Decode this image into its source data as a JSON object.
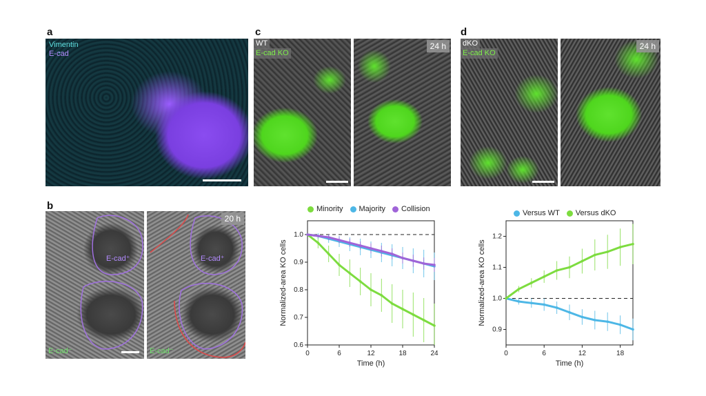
{
  "panels": {
    "a": {
      "letter": "a",
      "label1": "Vimentin",
      "label2": "E-cad"
    },
    "b": {
      "letter": "b",
      "time": "20 h",
      "ecad_plus_1": "E-cad⁺",
      "ecad_plus_2": "E-cad⁺",
      "ecad_minus_1": "E-cad⁻",
      "ecad_minus_2": "E-cad⁻"
    },
    "c": {
      "letter": "c",
      "label1": "WT",
      "label2": "E-cad KO",
      "time": "24 h"
    },
    "d": {
      "letter": "d",
      "label1": "dKO",
      "label2": "E-cad KO",
      "time": "24 h"
    }
  },
  "colors": {
    "minority": "#7ddc3f",
    "majority": "#4db7e6",
    "collision": "#a064d8",
    "vimentin": "#4fd6d6",
    "ecad": "#9b4dff",
    "gfp": "#55e82a"
  },
  "chart_data": [
    {
      "type": "line",
      "xlabel": "Time (h)",
      "ylabel": "Normalized-area KO cells",
      "xlim": [
        0,
        24
      ],
      "ylim": [
        0.6,
        1.05
      ],
      "xticks": [
        "0",
        "6",
        "12",
        "18",
        "24"
      ],
      "yticks": [
        "0.6",
        "0.7",
        "0.8",
        "0.9",
        "1.0"
      ],
      "reference_line": 1.0,
      "legend": "top",
      "series": [
        {
          "name": "Minority",
          "color": "#7ddc3f",
          "x": [
            0,
            2,
            4,
            6,
            8,
            10,
            12,
            14,
            16,
            18,
            20,
            22,
            24
          ],
          "y": [
            1.0,
            0.97,
            0.93,
            0.89,
            0.86,
            0.83,
            0.8,
            0.78,
            0.75,
            0.73,
            0.71,
            0.69,
            0.67
          ],
          "err": [
            0.0,
            0.02,
            0.03,
            0.04,
            0.05,
            0.05,
            0.06,
            0.06,
            0.07,
            0.07,
            0.08,
            0.08,
            0.08
          ]
        },
        {
          "name": "Majority",
          "color": "#4db7e6",
          "x": [
            0,
            2,
            4,
            6,
            8,
            10,
            12,
            14,
            16,
            18,
            20,
            22,
            24
          ],
          "y": [
            1.0,
            0.995,
            0.985,
            0.975,
            0.965,
            0.955,
            0.945,
            0.935,
            0.925,
            0.915,
            0.905,
            0.895,
            0.885
          ],
          "err": [
            0.0,
            0.01,
            0.015,
            0.02,
            0.025,
            0.03,
            0.03,
            0.035,
            0.04,
            0.04,
            0.045,
            0.05,
            0.05
          ]
        },
        {
          "name": "Collision",
          "color": "#a064d8",
          "x": [
            0,
            2,
            4,
            6,
            8,
            10,
            12,
            14,
            16,
            18,
            20,
            22,
            24
          ],
          "y": [
            1.0,
            0.995,
            0.99,
            0.98,
            0.97,
            0.96,
            0.95,
            0.94,
            0.93,
            0.915,
            0.905,
            0.895,
            0.89
          ],
          "err": [
            0.0,
            0.005,
            0.01,
            0.012,
            0.015,
            0.015,
            0.018,
            0.02,
            0.02,
            0.02,
            0.022,
            0.022,
            0.025
          ]
        }
      ]
    },
    {
      "type": "line",
      "xlabel": "Time (h)",
      "ylabel": "Normalized-area KO cells",
      "xlim": [
        0,
        20
      ],
      "ylim": [
        0.85,
        1.25
      ],
      "xticks": [
        "0",
        "6",
        "12",
        "18"
      ],
      "yticks": [
        "0.9",
        "1.0",
        "1.1",
        "1.2"
      ],
      "reference_line": 1.0,
      "legend": "top",
      "series": [
        {
          "name": "Versus WT",
          "color": "#4db7e6",
          "x": [
            0,
            2,
            4,
            6,
            8,
            10,
            12,
            14,
            16,
            18,
            20
          ],
          "y": [
            1.0,
            0.99,
            0.985,
            0.98,
            0.97,
            0.955,
            0.94,
            0.93,
            0.925,
            0.915,
            0.9
          ],
          "err": [
            0.0,
            0.01,
            0.015,
            0.02,
            0.02,
            0.025,
            0.025,
            0.03,
            0.03,
            0.03,
            0.035
          ]
        },
        {
          "name": "Versus dKO",
          "color": "#7ddc3f",
          "x": [
            0,
            2,
            4,
            6,
            8,
            10,
            12,
            14,
            16,
            18,
            20
          ],
          "y": [
            1.0,
            1.03,
            1.05,
            1.07,
            1.09,
            1.1,
            1.12,
            1.14,
            1.15,
            1.165,
            1.175
          ],
          "err": [
            0.0,
            0.01,
            0.015,
            0.02,
            0.03,
            0.035,
            0.04,
            0.05,
            0.055,
            0.06,
            0.065
          ]
        }
      ]
    }
  ]
}
